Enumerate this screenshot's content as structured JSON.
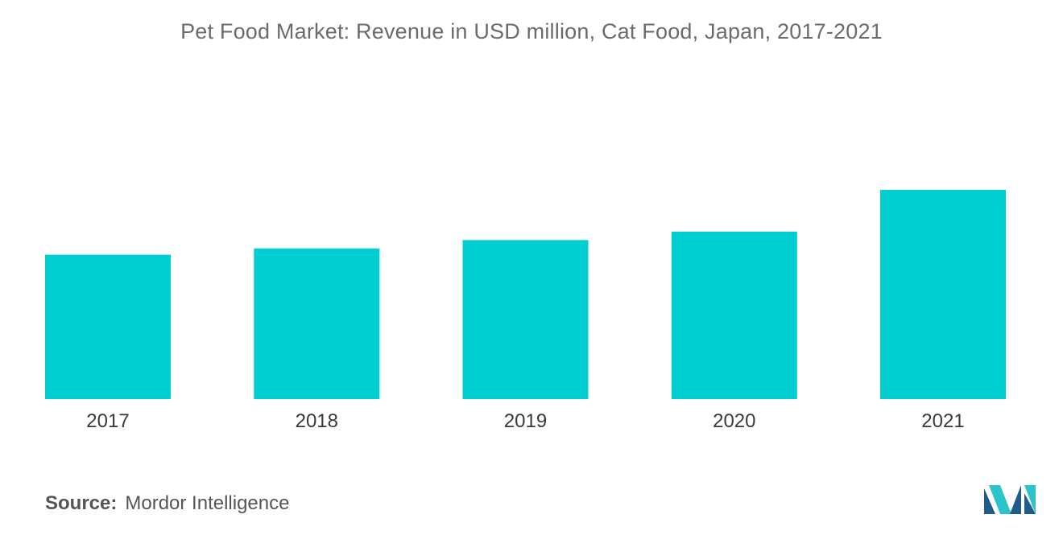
{
  "title": "Pet Food Market: Revenue in USD million, Cat Food, Japan, 2017-2021",
  "source": {
    "label": "Source:",
    "value": "Mordor Intelligence"
  },
  "colors": {
    "bar": "#00CED1",
    "logo_dark": "#1f5c8a",
    "logo_light": "#2bc5c9"
  },
  "logo": {
    "icon": "mordor-intelligence-logo"
  },
  "chart_data": {
    "type": "bar",
    "title": "Pet Food Market: Revenue in USD million, Cat Food, Japan, 2017-2021",
    "xlabel": "",
    "ylabel": "",
    "categories": [
      "2017",
      "2018",
      "2019",
      "2020",
      "2021"
    ],
    "values": [
      69,
      72,
      76,
      80,
      100
    ],
    "ylim": [
      0,
      100
    ],
    "grid": false,
    "legend": "none",
    "y_axis_visible": false
  }
}
